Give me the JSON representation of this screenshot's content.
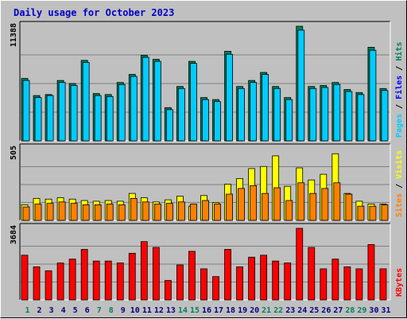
{
  "chart_data": {
    "type": "bar",
    "title": "Daily usage for October 2023",
    "categories": [
      "1",
      "2",
      "3",
      "4",
      "5",
      "6",
      "7",
      "8",
      "9",
      "10",
      "11",
      "12",
      "13",
      "14",
      "15",
      "16",
      "17",
      "18",
      "19",
      "20",
      "21",
      "22",
      "23",
      "24",
      "25",
      "26",
      "27",
      "28",
      "29",
      "30",
      "31"
    ],
    "weekend_days": [
      "1",
      "7",
      "8",
      "14",
      "15",
      "21",
      "22",
      "28",
      "29"
    ],
    "panels": [
      {
        "name": "hits-files-pages",
        "ymax_label": "11388",
        "ymax": 11388,
        "right_label": [
          "Pages",
          "Files",
          "Hits"
        ],
        "right_label_colors": [
          "#00ccff",
          "#0000ff",
          "#00805c"
        ],
        "series": [
          {
            "name": "Hits",
            "color": "#00805c",
            "values": [
              6200,
              4500,
              4600,
              6000,
              5700,
              8000,
              4700,
              4600,
              5800,
              6600,
              8500,
              8100,
              3300,
              5400,
              7900,
              4300,
              4100,
              8900,
              5400,
              6000,
              6800,
              5400,
              4300,
              11388,
              5400,
              5500,
              5800,
              5100,
              4800,
              9300,
              5200
            ]
          },
          {
            "name": "Files",
            "color": "#00ccff",
            "values": [
              6000,
              4300,
              4500,
              5800,
              5500,
              7800,
              4500,
              4400,
              5600,
              6400,
              8300,
              7900,
              3100,
              5200,
              7700,
              4100,
              3900,
              8600,
              5200,
              5800,
              6600,
              5200,
              4100,
              11000,
              5200,
              5300,
              5600,
              4900,
              4600,
              9000,
              5000
            ]
          },
          {
            "name": "Pages",
            "color": "#00ccff",
            "values": [
              0,
              0,
              0,
              0,
              0,
              0,
              0,
              0,
              0,
              0,
              0,
              0,
              0,
              0,
              0,
              0,
              0,
              0,
              0,
              0,
              0,
              0,
              0,
              0,
              0,
              0,
              0,
              0,
              0,
              0,
              0
            ],
            "hidden": true
          }
        ]
      },
      {
        "name": "visits-sites",
        "ymax_label": "505",
        "ymax": 505,
        "right_label": [
          "Sites",
          "Visits"
        ],
        "right_label_colors": [
          "#ff8000",
          "#ffff00"
        ],
        "series": [
          {
            "name": "Visits",
            "color": "#ffff00",
            "values": [
              110,
              155,
              150,
              160,
              150,
              140,
              135,
              140,
              135,
              190,
              160,
              130,
              145,
              170,
              100,
              175,
              125,
              255,
              295,
              365,
              380,
              455,
              240,
              370,
              285,
              325,
              470,
              190,
              135,
              115,
              115
            ]
          },
          {
            "name": "Sites",
            "color": "#ff8000",
            "values": [
              95,
              115,
              120,
              130,
              120,
              110,
              110,
              115,
              110,
              155,
              130,
              115,
              120,
              130,
              115,
              140,
              115,
              185,
              225,
              245,
              190,
              230,
              140,
              265,
              190,
              225,
              265,
              185,
              100,
              100,
              110
            ]
          }
        ]
      },
      {
        "name": "kbytes",
        "ymax_label": "3684",
        "ymax": 3684,
        "right_label": [
          "KBytes"
        ],
        "right_label_colors": [
          "#ff0000"
        ],
        "series": [
          {
            "name": "KBytes",
            "color": "#ff0000",
            "values": [
              2300,
              1700,
              1500,
              1900,
              2100,
              2600,
              2000,
              2000,
              1900,
              2400,
              3000,
              2700,
              1000,
              1800,
              2500,
              1600,
              1200,
              2600,
              1700,
              2200,
              2300,
              2000,
              1900,
              3684,
              2700,
              1600,
              2100,
              1700,
              1600,
              2850,
              1600
            ]
          }
        ]
      }
    ]
  }
}
